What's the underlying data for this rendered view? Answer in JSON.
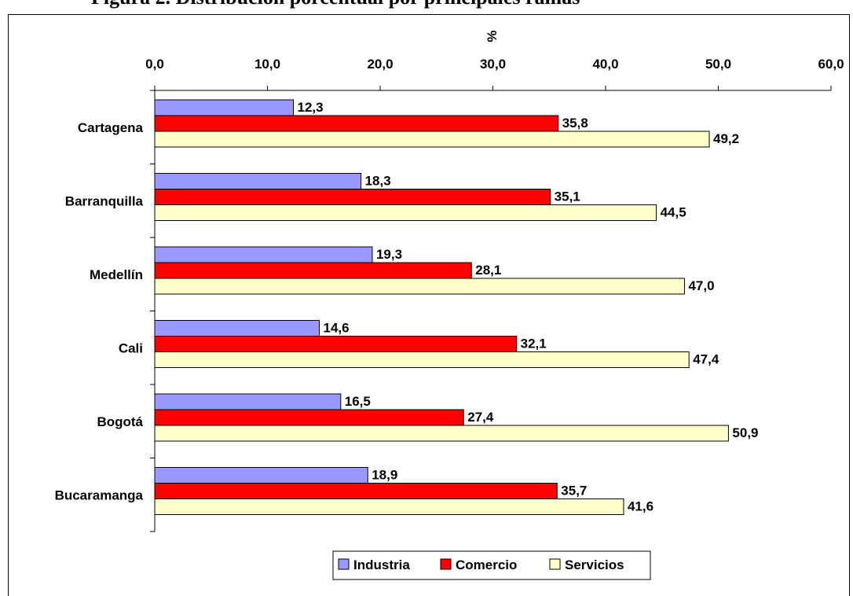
{
  "title": "Figura 2. Distribución porcentual por principales ramas",
  "chart_data": {
    "type": "bar",
    "orientation": "horizontal",
    "title": "Figura 2. Distribución porcentual por principales ramas",
    "xlabel": "%",
    "ylabel": "",
    "xlim": [
      0,
      60
    ],
    "x_ticks": [
      "0,0",
      "10,0",
      "20,0",
      "30,0",
      "40,0",
      "50,0",
      "60,0"
    ],
    "x_axis_position": "top",
    "grid": false,
    "legend_position": "bottom",
    "categories": [
      "Cartagena",
      "Barranquilla",
      "Medellín",
      "Cali",
      "Bogotá",
      "Bucaramanga"
    ],
    "series": [
      {
        "name": "Industria",
        "color": "#9999FF",
        "values": [
          12.3,
          18.3,
          19.3,
          14.6,
          16.5,
          18.9
        ],
        "labels": [
          "12,3",
          "18,3",
          "19,3",
          "14,6",
          "16,5",
          "18,9"
        ]
      },
      {
        "name": "Comercio",
        "color": "#FF0000",
        "values": [
          35.8,
          35.1,
          28.1,
          32.1,
          27.4,
          35.7
        ],
        "labels": [
          "35,8",
          "35,1",
          "28,1",
          "32,1",
          "27,4",
          "35,7"
        ]
      },
      {
        "name": "Servicios",
        "color": "#FFFFCC",
        "values": [
          49.2,
          44.5,
          47.0,
          47.4,
          50.9,
          41.6
        ],
        "labels": [
          "49,2",
          "44,5",
          "47,0",
          "47,4",
          "50,9",
          "41,6"
        ]
      }
    ]
  }
}
